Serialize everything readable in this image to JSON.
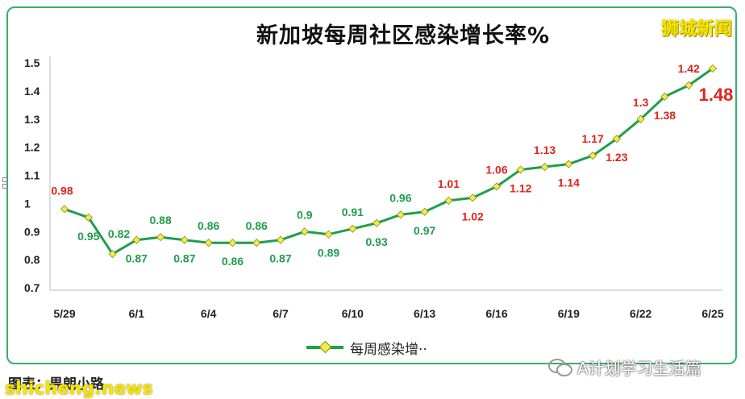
{
  "header": {
    "title": "新加坡每周社区感染增长率%",
    "brand": "狮城新闻"
  },
  "legend": {
    "label": "每周感染增··"
  },
  "footer": {
    "caption": "图表：畀朗小路",
    "wechat_label": "A计划学习生活篇",
    "watermark": "shicheng.news"
  },
  "colors": {
    "line": "#1f9e4b",
    "marker": "#f1ec4a",
    "label_low": "#1f9e4b",
    "label_high": "#e0241b",
    "frame": "#35b06a"
  },
  "chart_data": {
    "type": "line",
    "title": "新加坡每周社区感染增长率%",
    "xlabel": "",
    "ylabel": "",
    "ylim": [
      0.7,
      1.5
    ],
    "yticks": [
      0.7,
      0.8,
      0.9,
      1,
      1.1,
      1.2,
      1.3,
      1.4,
      1.5
    ],
    "xtick_labels": [
      "5/29",
      "6/1",
      "6/4",
      "6/7",
      "6/10",
      "6/13",
      "6/16",
      "6/19",
      "6/22",
      "6/25"
    ],
    "x": [
      "5/29",
      "5/30",
      "5/31",
      "6/1",
      "6/2",
      "6/3",
      "6/4",
      "6/5",
      "6/6",
      "6/7",
      "6/8",
      "6/9",
      "6/10",
      "6/11",
      "6/12",
      "6/13",
      "6/14",
      "6/15",
      "6/16",
      "6/17",
      "6/18",
      "6/19",
      "6/20",
      "6/21",
      "6/22",
      "6/23",
      "6/24",
      "6/25"
    ],
    "series": [
      {
        "name": "每周感染增··",
        "values": [
          0.98,
          0.95,
          0.82,
          0.87,
          0.88,
          0.87,
          0.86,
          0.86,
          0.86,
          0.87,
          0.9,
          0.89,
          0.91,
          0.93,
          0.96,
          0.97,
          1.01,
          1.02,
          1.06,
          1.12,
          1.13,
          1.14,
          1.17,
          1.23,
          1.3,
          1.38,
          1.42,
          1.48
        ]
      }
    ],
    "data_labels": [
      "0.98",
      "0.95",
      "0.82",
      "0.87",
      "0.88",
      "0.87",
      "0.86",
      "0.86",
      "0.86",
      "0.87",
      "0.9",
      "0.89",
      "0.91",
      "0.93",
      "0.96",
      "0.97",
      "1.01",
      "1.02",
      "1.06",
      "1.12",
      "1.13",
      "1.14",
      "1.17",
      "1.23",
      "1.3",
      "1.38",
      "1.42",
      "1.48"
    ],
    "grid": false,
    "legend_position": "bottom"
  }
}
